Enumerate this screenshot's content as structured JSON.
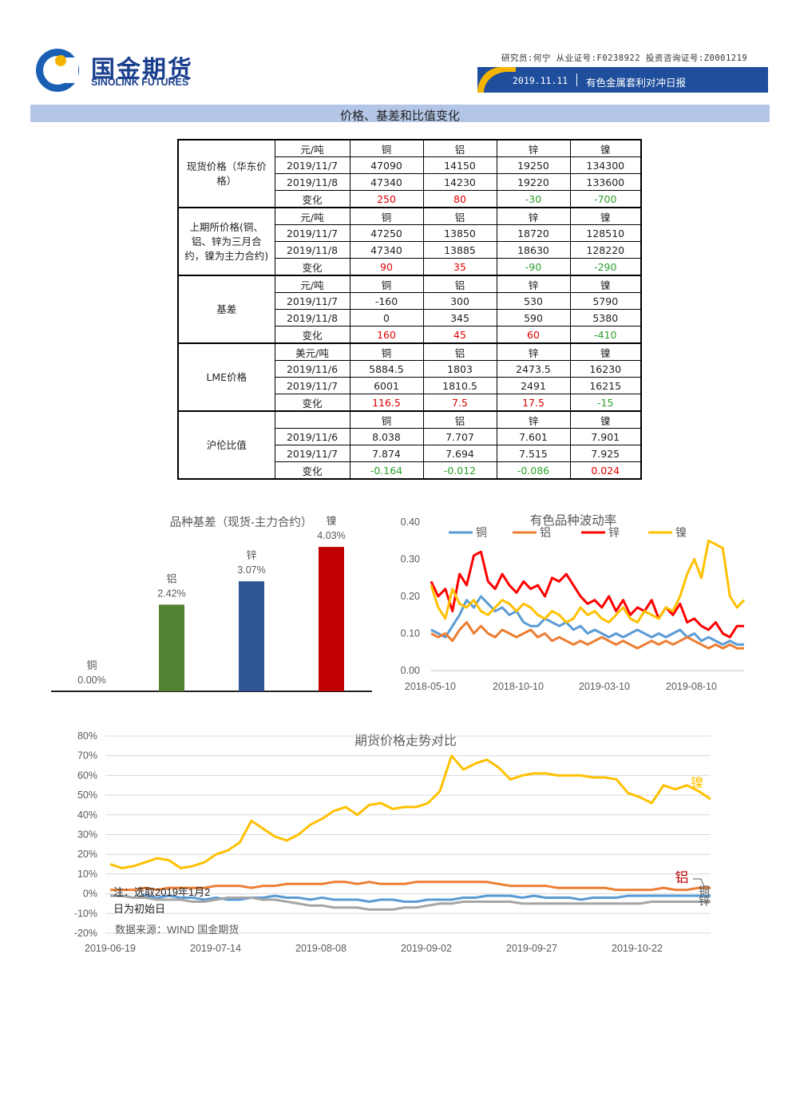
{
  "header": {
    "logo_cn": "国金期货",
    "logo_en": "SINOLINK FUTURES",
    "analyst_line": "研究员:何宁 从业证号:F0238922 投资咨询证号:Z0001219",
    "date": "2019.11.11",
    "report_title": "有色金属套利对冲日报"
  },
  "section_title": "价格、基差和比值变化",
  "table": {
    "groups": [
      {
        "label": "现货价格（华东价格）",
        "rows": [
          {
            "date": "元/吨",
            "cu": "铜",
            "al": "铝",
            "zn": "锌",
            "ni": "镍",
            "kind": "head"
          },
          {
            "date": "2019/11/7",
            "cu": "47090",
            "al": "14150",
            "zn": "19250",
            "ni": "134300",
            "kind": "val"
          },
          {
            "date": "2019/11/8",
            "cu": "47340",
            "al": "14230",
            "zn": "19220",
            "ni": "133600",
            "kind": "val"
          },
          {
            "date": "变化",
            "cu": "250",
            "al": "80",
            "zn": "-30",
            "ni": "-700",
            "kind": "chg"
          }
        ]
      },
      {
        "label": "上期所价格(铜、铝、锌为三月合约，镍为主力合约)",
        "rows": [
          {
            "date": "元/吨",
            "cu": "铜",
            "al": "铝",
            "zn": "锌",
            "ni": "镍",
            "kind": "head"
          },
          {
            "date": "2019/11/7",
            "cu": "47250",
            "al": "13850",
            "zn": "18720",
            "ni": "128510",
            "kind": "val"
          },
          {
            "date": "2019/11/8",
            "cu": "47340",
            "al": "13885",
            "zn": "18630",
            "ni": "128220",
            "kind": "val"
          },
          {
            "date": "变化",
            "cu": "90",
            "al": "35",
            "zn": "-90",
            "ni": "-290",
            "kind": "chg"
          }
        ]
      },
      {
        "label": "基差",
        "rows": [
          {
            "date": "元/吨",
            "cu": "铜",
            "al": "铝",
            "zn": "锌",
            "ni": "镍",
            "kind": "head"
          },
          {
            "date": "2019/11/7",
            "cu": "-160",
            "al": "300",
            "zn": "530",
            "ni": "5790",
            "kind": "val"
          },
          {
            "date": "2019/11/8",
            "cu": "0",
            "al": "345",
            "zn": "590",
            "ni": "5380",
            "kind": "val"
          },
          {
            "date": "变化",
            "cu": "160",
            "al": "45",
            "zn": "60",
            "ni": "-410",
            "kind": "chg"
          }
        ]
      },
      {
        "label": "LME价格",
        "rows": [
          {
            "date": "美元/吨",
            "cu": "铜",
            "al": "铝",
            "zn": "锌",
            "ni": "镍",
            "kind": "head"
          },
          {
            "date": "2019/11/6",
            "cu": "5884.5",
            "al": "1803",
            "zn": "2473.5",
            "ni": "16230",
            "kind": "val"
          },
          {
            "date": "2019/11/7",
            "cu": "6001",
            "al": "1810.5",
            "zn": "2491",
            "ni": "16215",
            "kind": "val"
          },
          {
            "date": "变化",
            "cu": "116.5",
            "al": "7.5",
            "zn": "17.5",
            "ni": "-15",
            "kind": "chg"
          }
        ]
      },
      {
        "label": "沪伦比值",
        "rows": [
          {
            "date": "",
            "cu": "铜",
            "al": "铝",
            "zn": "锌",
            "ni": "镍",
            "kind": "head"
          },
          {
            "date": "2019/11/6",
            "cu": "8.038",
            "al": "7.707",
            "zn": "7.601",
            "ni": "7.901",
            "kind": "val"
          },
          {
            "date": "2019/11/7",
            "cu": "7.874",
            "al": "7.694",
            "zn": "7.515",
            "ni": "7.925",
            "kind": "val"
          },
          {
            "date": "变化",
            "cu": "-0.164",
            "al": "-0.012",
            "zn": "-0.086",
            "ni": "0.024",
            "kind": "chg"
          }
        ]
      }
    ]
  },
  "chart_data": [
    {
      "type": "bar",
      "title": "品种基差（现货-主力合约）",
      "categories": [
        "铜",
        "铝",
        "锌",
        "镍"
      ],
      "values": [
        0.0,
        2.42,
        3.07,
        4.03
      ],
      "labels": [
        "0.00%",
        "2.42%",
        "3.07%",
        "4.03%"
      ],
      "colors": [
        "#70ad47",
        "#548235",
        "#2f5597",
        "#c00000"
      ],
      "ylim": [
        0,
        4.5
      ]
    },
    {
      "type": "line",
      "title": "有色品种波动率",
      "x_ticks": [
        "2018-05-10",
        "2018-10-10",
        "2019-03-10",
        "2019-08-10"
      ],
      "y_ticks": [
        "0.00",
        "0.10",
        "0.20",
        "0.30",
        "0.40"
      ],
      "ylim": [
        0,
        0.4
      ],
      "legend": "top",
      "series": [
        {
          "name": "铜",
          "color": "#5b9bd5",
          "values": [
            0.11,
            0.1,
            0.09,
            0.12,
            0.15,
            0.19,
            0.17,
            0.2,
            0.18,
            0.16,
            0.17,
            0.15,
            0.16,
            0.13,
            0.12,
            0.12,
            0.14,
            0.13,
            0.12,
            0.13,
            0.11,
            0.12,
            0.1,
            0.11,
            0.1,
            0.09,
            0.1,
            0.09,
            0.1,
            0.11,
            0.1,
            0.09,
            0.1,
            0.09,
            0.1,
            0.11,
            0.09,
            0.1,
            0.08,
            0.09,
            0.08,
            0.07,
            0.08,
            0.07,
            0.07
          ]
        },
        {
          "name": "铝",
          "color": "#ed7d31",
          "values": [
            0.1,
            0.09,
            0.1,
            0.08,
            0.11,
            0.13,
            0.1,
            0.12,
            0.1,
            0.09,
            0.11,
            0.1,
            0.09,
            0.1,
            0.11,
            0.09,
            0.1,
            0.08,
            0.09,
            0.08,
            0.07,
            0.08,
            0.07,
            0.08,
            0.09,
            0.08,
            0.07,
            0.08,
            0.07,
            0.06,
            0.07,
            0.08,
            0.07,
            0.08,
            0.07,
            0.08,
            0.09,
            0.08,
            0.07,
            0.06,
            0.07,
            0.06,
            0.07,
            0.06,
            0.06
          ]
        },
        {
          "name": "锌",
          "color": "#ff0000",
          "values": [
            0.24,
            0.2,
            0.22,
            0.16,
            0.26,
            0.23,
            0.31,
            0.32,
            0.24,
            0.22,
            0.26,
            0.23,
            0.21,
            0.24,
            0.22,
            0.23,
            0.2,
            0.25,
            0.24,
            0.26,
            0.23,
            0.2,
            0.18,
            0.19,
            0.17,
            0.2,
            0.16,
            0.19,
            0.15,
            0.17,
            0.16,
            0.19,
            0.14,
            0.17,
            0.15,
            0.18,
            0.13,
            0.14,
            0.12,
            0.11,
            0.13,
            0.1,
            0.09,
            0.12,
            0.12
          ]
        },
        {
          "name": "镍",
          "color": "#ffc000",
          "values": [
            0.23,
            0.17,
            0.14,
            0.22,
            0.18,
            0.17,
            0.19,
            0.16,
            0.15,
            0.17,
            0.19,
            0.18,
            0.16,
            0.18,
            0.17,
            0.15,
            0.14,
            0.16,
            0.15,
            0.13,
            0.14,
            0.17,
            0.15,
            0.16,
            0.14,
            0.13,
            0.15,
            0.17,
            0.14,
            0.13,
            0.16,
            0.15,
            0.14,
            0.17,
            0.16,
            0.2,
            0.26,
            0.3,
            0.25,
            0.35,
            0.34,
            0.33,
            0.2,
            0.17,
            0.19
          ]
        }
      ]
    },
    {
      "type": "line",
      "title": "期货价格走势对比",
      "x_ticks": [
        "2019-06-19",
        "2019-07-14",
        "2019-08-08",
        "2019-09-02",
        "2019-09-27",
        "2019-10-22"
      ],
      "y_ticks": [
        "80%",
        "70%",
        "60%",
        "50%",
        "40%",
        "30%",
        "20%",
        "10%",
        "0%",
        "-10%",
        "-20%"
      ],
      "ylim": [
        -20,
        80
      ],
      "series": [
        {
          "name": "镍",
          "color": "#ffc000",
          "values": [
            15,
            13,
            14,
            16,
            18,
            17,
            13,
            14,
            16,
            20,
            22,
            26,
            37,
            33,
            29,
            27,
            30,
            35,
            38,
            42,
            44,
            40,
            45,
            46,
            43,
            44,
            44,
            46,
            52,
            70,
            63,
            66,
            68,
            64,
            58,
            60,
            61,
            61,
            60,
            60,
            60,
            59,
            59,
            58,
            51,
            49,
            46,
            55,
            53,
            55,
            52,
            48
          ]
        },
        {
          "name": "铝",
          "color": "#ed7d31",
          "values": [
            2,
            2,
            2,
            3,
            2,
            3,
            3,
            3,
            3,
            4,
            4,
            4,
            3,
            4,
            4,
            5,
            5,
            5,
            5,
            6,
            6,
            5,
            6,
            5,
            5,
            5,
            6,
            6,
            6,
            6,
            6,
            6,
            6,
            5,
            4,
            4,
            4,
            4,
            3,
            3,
            3,
            3,
            3,
            2,
            2,
            2,
            2,
            3,
            2,
            2,
            3,
            3
          ]
        },
        {
          "name": "铜",
          "color": "#5b9bd5",
          "values": [
            -1,
            -1,
            -2,
            -1,
            -2,
            -1,
            -2,
            -2,
            -3,
            -2,
            -3,
            -3,
            -2,
            -2,
            -1,
            -2,
            -2,
            -3,
            -2,
            -3,
            -3,
            -3,
            -4,
            -3,
            -3,
            -4,
            -4,
            -3,
            -3,
            -3,
            -2,
            -2,
            -1,
            -1,
            -1,
            -2,
            -1,
            -2,
            -2,
            -2,
            -3,
            -2,
            -2,
            -2,
            -1,
            -1,
            -1,
            -1,
            -1,
            -1,
            -1,
            -1
          ]
        },
        {
          "name": "锌",
          "color": "#a5a5a5",
          "values": [
            -1,
            -1,
            -2,
            -2,
            -3,
            -3,
            -3,
            -4,
            -4,
            -3,
            -2,
            -2,
            -2,
            -3,
            -3,
            -4,
            -5,
            -6,
            -6,
            -7,
            -7,
            -7,
            -8,
            -8,
            -8,
            -7,
            -7,
            -6,
            -5,
            -5,
            -4,
            -4,
            -4,
            -4,
            -4,
            -5,
            -5,
            -5,
            -5,
            -5,
            -5,
            -5,
            -5,
            -5,
            -5,
            -5,
            -4,
            -4,
            -4,
            -4,
            -4,
            -4
          ]
        }
      ],
      "note": "注：选取2019年1月2日为初始日",
      "source": "数据来源：WIND 国金期货",
      "end_labels": {
        "ni": "镍",
        "al": "铝",
        "cu": "铜",
        "zn": "锌"
      }
    }
  ]
}
